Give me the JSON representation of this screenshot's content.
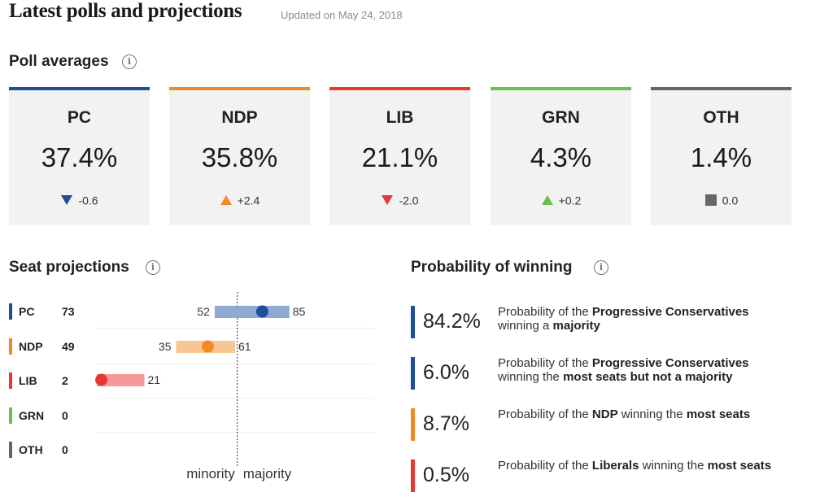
{
  "header": {
    "title": "Latest polls and projections",
    "updated": "Updated on May 24, 2018"
  },
  "poll_section": {
    "title": "Poll averages",
    "info_icon": "info-icon",
    "cards": [
      {
        "party": "PC",
        "pct": "37.4%",
        "change": "-0.6",
        "direction": "down",
        "color": "#1f4e9a"
      },
      {
        "party": "NDP",
        "pct": "35.8%",
        "change": "+2.4",
        "direction": "up",
        "color": "#f08a24"
      },
      {
        "party": "LIB",
        "pct": "21.1%",
        "change": "-2.0",
        "direction": "down",
        "color": "#e53935"
      },
      {
        "party": "GRN",
        "pct": "4.3%",
        "change": "+0.2",
        "direction": "up",
        "color": "#6cc04a"
      },
      {
        "party": "OTH",
        "pct": "1.4%",
        "change": "0.0",
        "direction": "flat",
        "color": "#666666"
      }
    ]
  },
  "seat_section": {
    "title": "Seat projections",
    "info_icon": "info-icon",
    "rows": [
      {
        "party": "PC",
        "seats": "73",
        "color": "#1f4e9a",
        "bar_color": "#8fa9d4"
      },
      {
        "party": "NDP",
        "seats": "49",
        "color": "#f08a24",
        "bar_color": "#f8c693"
      },
      {
        "party": "LIB",
        "seats": "2",
        "color": "#e53935",
        "bar_color": "#f3999a"
      },
      {
        "party": "GRN",
        "seats": "0",
        "color": "#6cc04a",
        "bar_color": "#b5e0a3"
      },
      {
        "party": "OTH",
        "seats": "0",
        "color": "#666666",
        "bar_color": "#bbbbbb"
      }
    ],
    "minority_label": "minority",
    "majority_label": "majority"
  },
  "chart_data": {
    "type": "range",
    "categories": [
      "PC",
      "NDP",
      "LIB",
      "GRN",
      "OTH"
    ],
    "series": [
      {
        "values": [
          73,
          49,
          2,
          0,
          0
        ]
      },
      {
        "values": [
          52,
          35,
          0,
          null,
          null
        ]
      },
      {
        "values": [
          85,
          61,
          21,
          null,
          null
        ]
      }
    ],
    "majority_threshold": 62,
    "xlim": [
      0,
      124
    ],
    "annotations": [
      "minority",
      "majority"
    ]
  },
  "prob_section": {
    "title": "Probability of winning",
    "info_icon": "info-icon",
    "items": [
      {
        "value": "84.2%",
        "color": "#1f4e9a",
        "pre": "Probability of the ",
        "party": "Progressive Conservatives",
        "mid": " winning a ",
        "outcome": "majority"
      },
      {
        "value": "6.0%",
        "color": "#1f4e9a",
        "pre": "Probability of the ",
        "party": "Progressive Conservatives",
        "mid": " winning the ",
        "outcome": "most seats but not a majority"
      },
      {
        "value": "8.7%",
        "color": "#f08a24",
        "pre": "Probability of the ",
        "party": "NDP",
        "mid": " winning the ",
        "outcome": "most seats"
      },
      {
        "value": "0.5%",
        "color": "#e53935",
        "pre": "Probability of the ",
        "party": "Liberals",
        "mid": " winning the ",
        "outcome": "most seats"
      }
    ]
  }
}
